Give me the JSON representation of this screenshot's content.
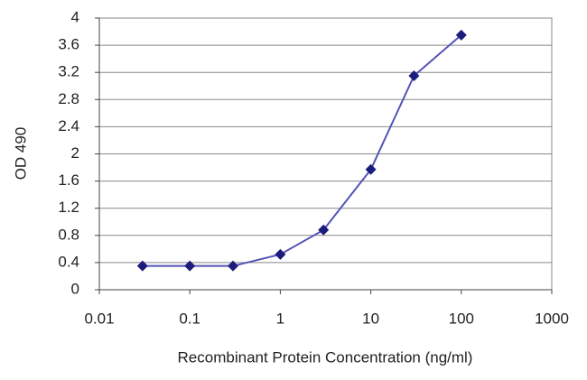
{
  "chart_data": {
    "type": "line",
    "x_label": "Recombinant Protein Concentration (ng/ml)",
    "y_label": "OD 490",
    "x": [
      0.03,
      0.1,
      0.3,
      1,
      3,
      10,
      30,
      100
    ],
    "series": [
      {
        "color": "#5454b8",
        "values": [
          0.35,
          0.35,
          0.35,
          0.52,
          0.88,
          1.77,
          3.15,
          3.75
        ]
      }
    ],
    "marker_color": "#1c1c7c",
    "xlog": true,
    "xlim": [
      0.01,
      1000
    ],
    "xticks": [
      0.01,
      0.1,
      1,
      10,
      100,
      1000
    ],
    "ylim": [
      0,
      4
    ],
    "yticks": [
      0,
      0.4,
      0.8,
      1.2,
      1.6,
      2,
      2.4,
      2.8,
      3.2,
      3.6,
      4
    ],
    "grid": true
  }
}
